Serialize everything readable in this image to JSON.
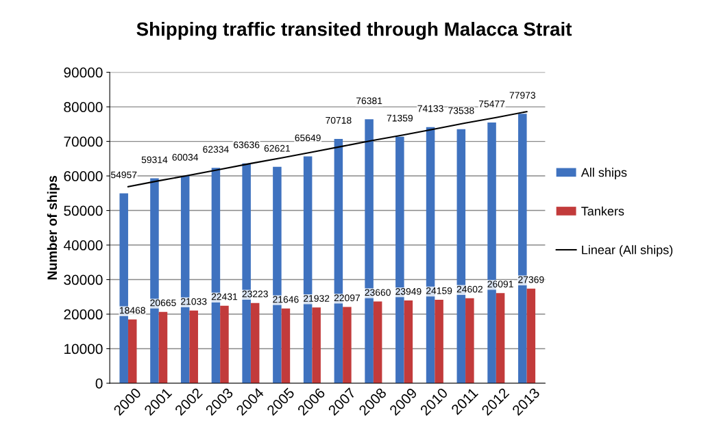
{
  "chart_data": {
    "type": "bar",
    "title": "Shipping traffic transited through Malacca Strait",
    "ylabel": "Number of ships",
    "categories": [
      "2000",
      "2001",
      "2002",
      "2003",
      "2004",
      "2005",
      "2006",
      "2007",
      "2008",
      "2009",
      "2010",
      "2011",
      "2012",
      "2013"
    ],
    "series": [
      {
        "name": "All ships",
        "color": "#3f72bf",
        "values": [
          54957,
          59314,
          60034,
          62334,
          63636,
          62621,
          65649,
          70718,
          76381,
          71359,
          74133,
          73538,
          75477,
          77973
        ],
        "value_labels": [
          "54957",
          "59314",
          "60034",
          "62334",
          "63636",
          "62621",
          "65649",
          "70718",
          "76381",
          "71359",
          "74133",
          "73538",
          "75477",
          "77973"
        ]
      },
      {
        "name": "Tankers",
        "color": "#c23b3b",
        "values": [
          18468,
          20665,
          21033,
          22431,
          23223,
          21646,
          21932,
          22097,
          23660,
          23949,
          24159,
          24602,
          26091,
          27369
        ],
        "value_labels": [
          "18468",
          "20665",
          "21033",
          "22431",
          "23223",
          "21646",
          "21932",
          "22097",
          "23660",
          "23949",
          "24159",
          "24602",
          "26091",
          "27369"
        ]
      },
      {
        "name": "Linear (All ships)",
        "type": "line",
        "color": "#000000",
        "values": [
          56900,
          58600,
          60200,
          61900,
          63600,
          65200,
          66900,
          68600,
          70300,
          71900,
          73600,
          75300,
          76900,
          78600
        ]
      }
    ],
    "ylim": [
      0,
      90000
    ],
    "yticks": [
      0,
      10000,
      20000,
      30000,
      40000,
      50000,
      60000,
      70000,
      80000,
      90000
    ],
    "grid": "y",
    "legend": "right"
  }
}
